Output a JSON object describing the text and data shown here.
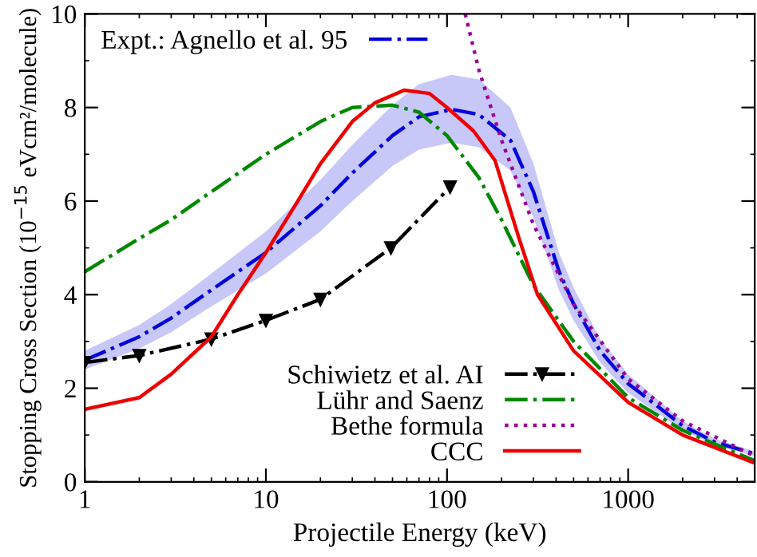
{
  "chart_data": {
    "type": "line",
    "xlabel": "Projectile Energy (keV)",
    "ylabel": "Stopping Cross Section (10$^{−15}$ eVcm²/molecule)",
    "log": "x",
    "xlim": [
      1,
      5000
    ],
    "ylim": [
      0,
      10
    ],
    "xticks": [
      1,
      10,
      100,
      1000
    ],
    "yticks": [
      0,
      2,
      4,
      6,
      8,
      10
    ],
    "grid": false,
    "legend": "top left",
    "series": [
      {
        "name": "Expt.: Agnello et al. 95",
        "color": "#0000dd",
        "line_style": "dashed",
        "x": [
          1,
          2,
          3,
          5,
          10,
          20,
          30,
          50,
          70,
          106,
          150,
          224,
          300,
          415,
          500,
          700,
          1000,
          2000,
          3000,
          5000
        ],
        "values": [
          2.6,
          3.1,
          3.5,
          4.1,
          4.9,
          5.9,
          6.6,
          7.4,
          7.8,
          7.96,
          7.85,
          7.3,
          6.2,
          4.5,
          3.8,
          2.8,
          2.1,
          1.2,
          0.85,
          0.6
        ],
        "lower": [
          2.4,
          2.85,
          3.2,
          3.75,
          4.45,
          5.35,
          6.0,
          6.75,
          7.1,
          7.25,
          7.15,
          6.65,
          5.65,
          4.1,
          3.45,
          2.55,
          1.9,
          1.1,
          0.78,
          0.55
        ],
        "upper": [
          2.8,
          3.35,
          3.8,
          4.45,
          5.35,
          6.45,
          7.2,
          8.05,
          8.5,
          8.7,
          8.6,
          8.0,
          6.8,
          4.9,
          4.15,
          3.05,
          2.3,
          1.3,
          0.92,
          0.65
        ]
      },
      {
        "name": "Schiwietz et al. AI",
        "color": "#000000",
        "line_style": "dashed",
        "marker": "triangle",
        "x": [
          1,
          2,
          5,
          10,
          20,
          49,
          104
        ],
        "values": [
          2.55,
          2.7,
          3.05,
          3.45,
          3.9,
          5.0,
          6.3
        ]
      },
      {
        "name": "Lühr and Saenz",
        "color": "#008800",
        "line_style": "dashed",
        "x": [
          1,
          2,
          3,
          5,
          10,
          20,
          30,
          50,
          70,
          100,
          150,
          200,
          300,
          500,
          1000,
          2000,
          5000
        ],
        "values": [
          4.49,
          5.2,
          5.6,
          6.2,
          7.0,
          7.7,
          8.0,
          8.05,
          7.9,
          7.4,
          6.5,
          5.6,
          4.2,
          3.0,
          1.8,
          1.1,
          0.45
        ]
      },
      {
        "name": "Bethe formula",
        "color": "#990099",
        "line_style": "dotted",
        "x": [
          126,
          150,
          200,
          300,
          500,
          1000,
          2000,
          5000
        ],
        "values": [
          10,
          8.8,
          7.3,
          5.5,
          3.8,
          2.2,
          1.3,
          0.55
        ]
      },
      {
        "name": "CCC",
        "color": "#ee0000",
        "line_style": "solid",
        "x": [
          1,
          2,
          3,
          5,
          7,
          10,
          15,
          20,
          30,
          40,
          58,
          80,
          100,
          140,
          184,
          250,
          316,
          500,
          1000,
          2000,
          5000
        ],
        "values": [
          1.55,
          1.8,
          2.3,
          3.1,
          4.0,
          4.9,
          6.0,
          6.8,
          7.7,
          8.1,
          8.37,
          8.3,
          8.0,
          7.5,
          6.87,
          5.2,
          4.0,
          2.8,
          1.7,
          1.0,
          0.4
        ]
      }
    ]
  }
}
